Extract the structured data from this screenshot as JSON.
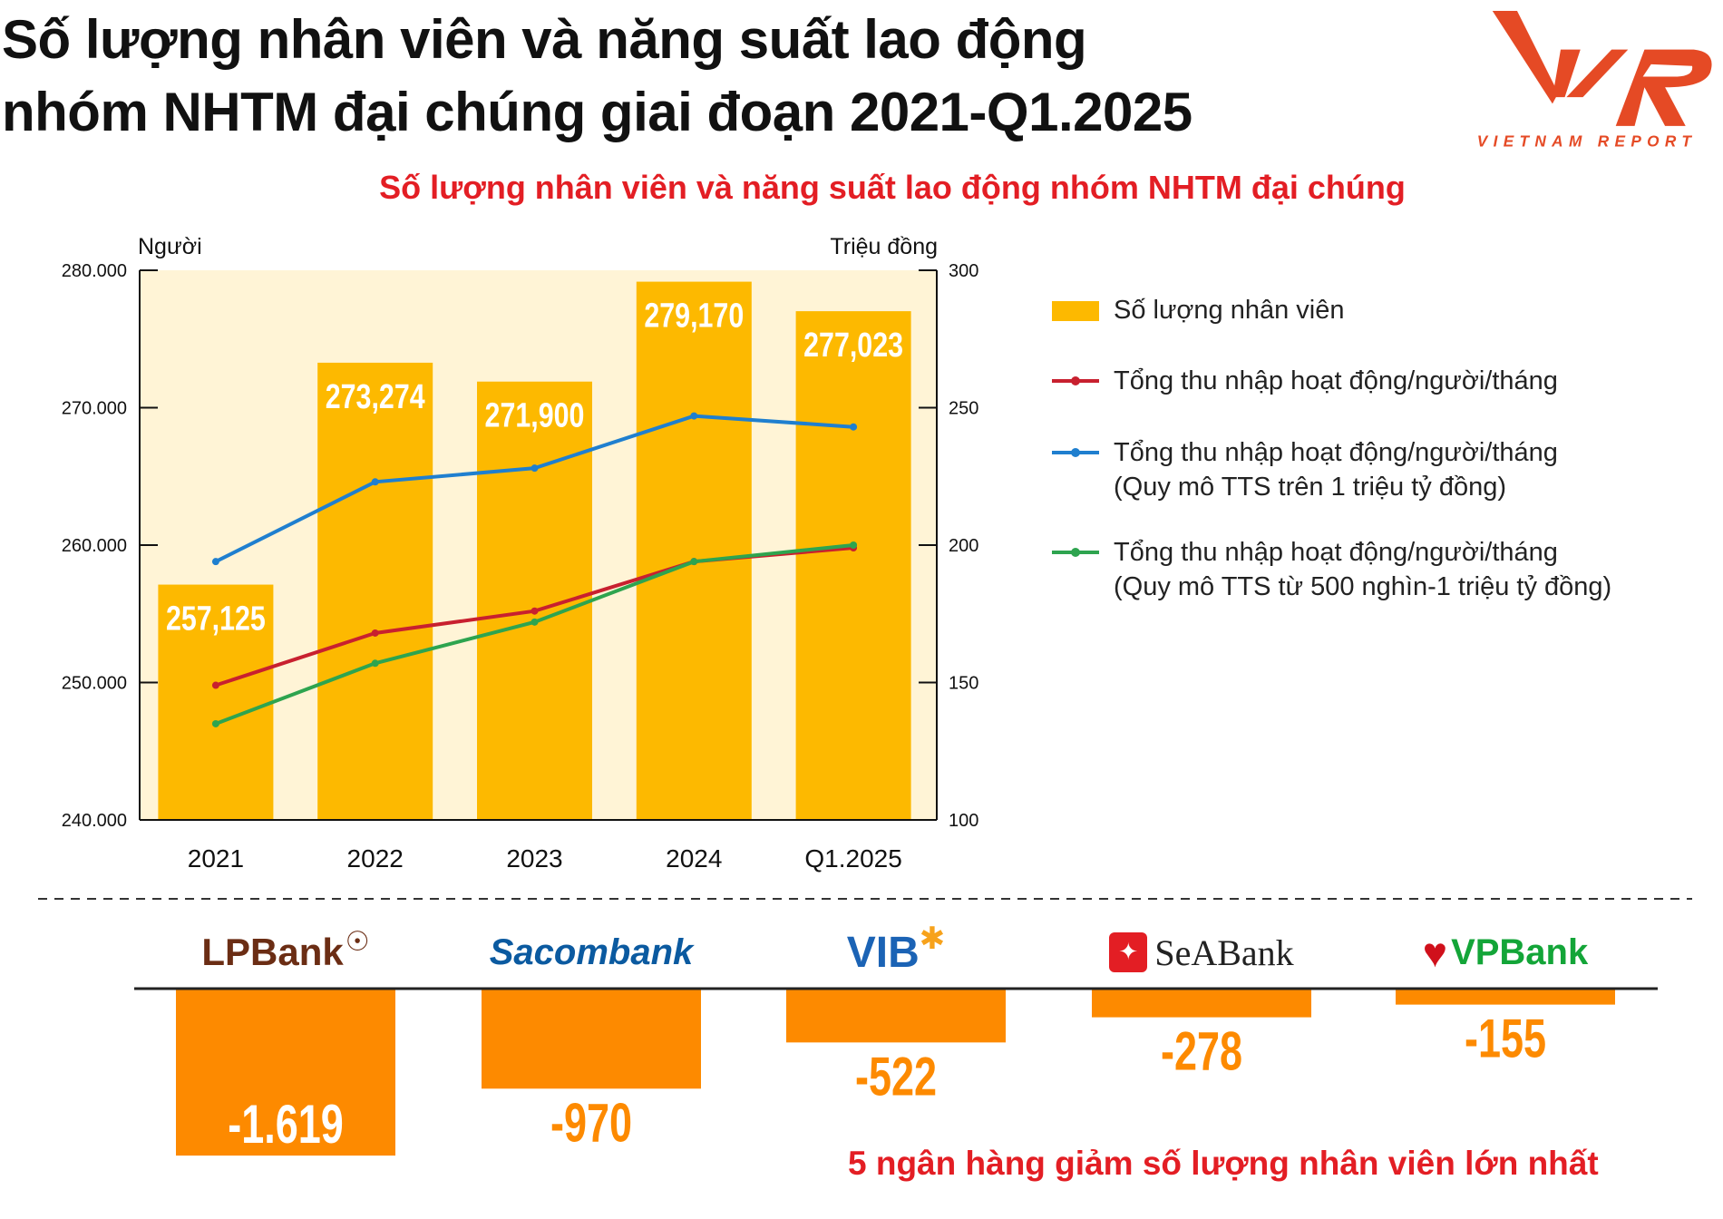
{
  "header": {
    "title_line1": "Số lượng nhân viên và năng suất lao động",
    "title_line2": "nhóm NHTM đại chúng giai đoạn 2021-Q1.2025",
    "logo_text": "VNR",
    "logo_subtext": "VIETNAM REPORT",
    "brand_color": "#e54a25"
  },
  "chart_data": [
    {
      "type": "bar+line",
      "title": "Số lượng nhân viên và năng suất lao động nhóm NHTM đại chúng",
      "categories": [
        "2021",
        "2022",
        "2023",
        "2024",
        "Q1.2025"
      ],
      "ylabel_left": "Người",
      "ylabel_right": "Triệu đồng",
      "ylim_left": [
        240000,
        280000
      ],
      "yticks_left": [
        "240.000",
        "250.000",
        "260.000",
        "270.000",
        "280.000"
      ],
      "ylim_right": [
        100,
        300
      ],
      "yticks_right": [
        "100",
        "150",
        "200",
        "250",
        "300"
      ],
      "legend_position": "right",
      "grid": false,
      "series": [
        {
          "name": "Số lượng nhân viên",
          "type": "bar",
          "axis": "left",
          "color": "#fdb900",
          "values": [
            257125,
            273274,
            271900,
            279170,
            277023
          ],
          "labels": [
            "257,125",
            "273,274",
            "271,900",
            "279,170",
            "277,023"
          ]
        },
        {
          "name": "Tổng thu nhập hoạt động/người/tháng",
          "type": "line",
          "axis": "right",
          "color": "#c8202f",
          "values": [
            149,
            168,
            176,
            194,
            199
          ]
        },
        {
          "name": "Tổng thu nhập hoạt động/người/tháng",
          "name_line2": "(Quy mô TTS trên 1 triệu tỷ đồng)",
          "type": "line",
          "axis": "right",
          "color": "#1f7fcf",
          "values": [
            194,
            223,
            228,
            247,
            243
          ]
        },
        {
          "name": "Tổng thu nhập hoạt động/người/tháng",
          "name_line2": "(Quy mô TTS từ 500 nghìn-1 triệu tỷ đồng)",
          "type": "line",
          "axis": "right",
          "color": "#2ea44f",
          "values": [
            135,
            157,
            172,
            194,
            200
          ]
        }
      ],
      "plot_bg": "#fff4d6"
    },
    {
      "type": "bar",
      "title": "5 ngân hàng giảm số lượng nhân viên lớn nhất",
      "categories": [
        "LPBank",
        "Sacombank",
        "VIB",
        "SeABank",
        "VPBank"
      ],
      "values": [
        -1619,
        -970,
        -522,
        -278,
        -155
      ],
      "labels": [
        "-1.619",
        "-970",
        "-522",
        "-278",
        "-155"
      ],
      "color": "#fd8a00"
    }
  ]
}
